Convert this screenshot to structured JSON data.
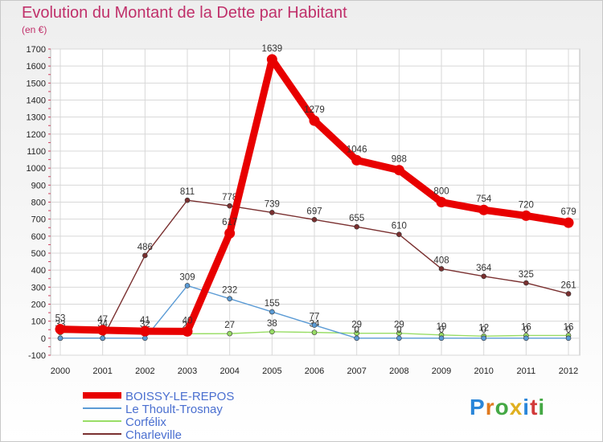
{
  "title": "Evolution du Montant de la Dette par Habitant",
  "subtitle": "(en €)",
  "logo": "Proxiti",
  "chart_data": {
    "type": "line",
    "x": [
      2000,
      2001,
      2002,
      2003,
      2004,
      2005,
      2006,
      2007,
      2008,
      2009,
      2010,
      2011,
      2012
    ],
    "ylim": [
      -100,
      1700
    ],
    "yticks": [
      -100,
      0,
      100,
      200,
      300,
      400,
      500,
      600,
      700,
      800,
      900,
      1000,
      1100,
      1200,
      1300,
      1400,
      1500,
      1600,
      1700
    ],
    "grid": true,
    "legend_position": "bottom-left",
    "series": [
      {
        "name": "BOISSY-LE-REPOS",
        "color": "#e80000",
        "values": [
          53,
          47,
          41,
          40,
          617,
          1639,
          1279,
          1046,
          988,
          800,
          754,
          720,
          679
        ]
      },
      {
        "name": "Le Thoult-Trosnay",
        "color": "#5b9bd5",
        "values": [
          0,
          0,
          0,
          309,
          232,
          155,
          77,
          0,
          0,
          0,
          0,
          0,
          0
        ]
      },
      {
        "name": "Corfélix",
        "color": "#99dd66",
        "values": [
          33,
          34,
          32,
          26,
          27,
          38,
          34,
          29,
          29,
          19,
          12,
          16,
          16
        ]
      },
      {
        "name": "Charleville",
        "color": "#7a3030",
        "values": [
          0,
          0,
          486,
          811,
          778,
          739,
          697,
          655,
          610,
          408,
          364,
          325,
          261
        ]
      }
    ]
  }
}
